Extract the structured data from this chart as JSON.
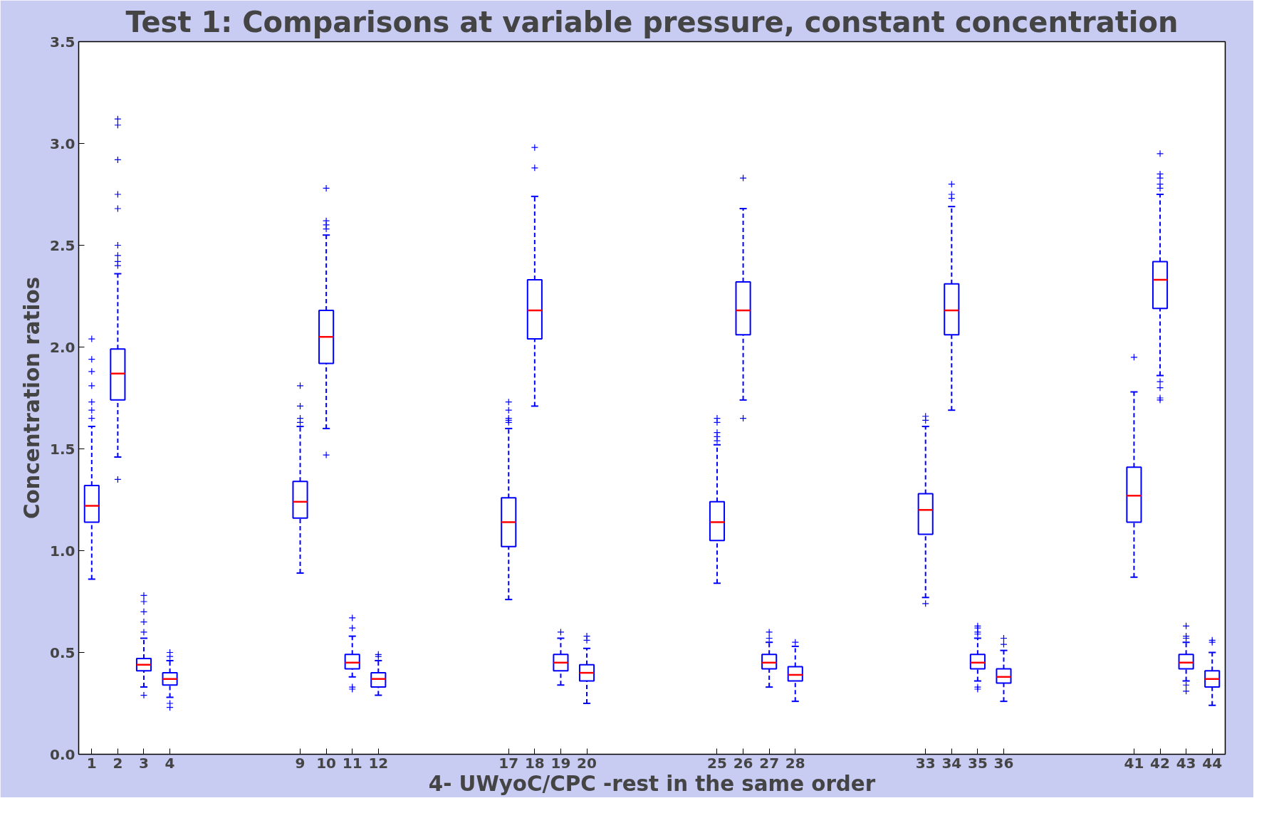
{
  "chart_data": {
    "type": "box",
    "title": "Test 1: Comparisons at variable pressure, constant concentration",
    "xlabel": "4- UWyoC/CPC -rest in the same order",
    "ylabel": "Concentration ratios",
    "x": [
      1,
      2,
      3,
      4,
      9,
      10,
      11,
      12,
      17,
      18,
      19,
      20,
      25,
      26,
      27,
      28,
      33,
      34,
      35,
      36,
      41,
      42,
      43,
      44
    ],
    "xlim": [
      0.5,
      44.5
    ],
    "xticks": [
      1,
      2,
      3,
      4,
      9,
      10,
      11,
      12,
      17,
      18,
      19,
      20,
      25,
      26,
      27,
      28,
      33,
      34,
      35,
      36,
      41,
      42,
      43,
      44
    ],
    "ylim": [
      0,
      3.5
    ],
    "yticks": [
      {
        "value": 0,
        "label": "0.0"
      },
      {
        "value": 0.5,
        "label": "0.5"
      },
      {
        "value": 1,
        "label": "1.0"
      },
      {
        "value": 1.5,
        "label": "1.5"
      },
      {
        "value": 2,
        "label": "2.0"
      },
      {
        "value": 2.5,
        "label": "2.5"
      },
      {
        "value": 3,
        "label": "3.0"
      },
      {
        "value": 3.5,
        "label": "3.5"
      }
    ],
    "color": "#0000ff",
    "marker": "cross",
    "grid": false,
    "boxes": [
      {
        "low": 0.86,
        "q1": 1.14,
        "median": 1.22,
        "q3": 1.32,
        "high": 1.61,
        "outliers": [
          1.65,
          1.69,
          1.73,
          1.81,
          1.88,
          1.94,
          2.04
        ]
      },
      {
        "low": 1.46,
        "q1": 1.74,
        "median": 1.87,
        "q3": 1.99,
        "high": 2.36,
        "outliers": [
          1.35,
          2.4,
          2.42,
          2.45,
          2.5,
          2.68,
          2.75,
          2.92,
          3.09,
          3.12
        ]
      },
      {
        "low": 0.33,
        "q1": 0.41,
        "median": 0.44,
        "q3": 0.47,
        "high": 0.57,
        "outliers": [
          0.29,
          0.6,
          0.65,
          0.7,
          0.75,
          0.78
        ]
      },
      {
        "low": 0.28,
        "q1": 0.34,
        "median": 0.37,
        "q3": 0.4,
        "high": 0.46,
        "outliers": [
          0.23,
          0.25,
          0.48,
          0.5
        ]
      },
      {
        "low": 0.89,
        "q1": 1.16,
        "median": 1.24,
        "q3": 1.34,
        "high": 1.61,
        "outliers": [
          1.63,
          1.65,
          1.71,
          1.81
        ]
      },
      {
        "low": 1.6,
        "q1": 1.92,
        "median": 2.05,
        "q3": 2.18,
        "high": 2.55,
        "outliers": [
          1.47,
          2.58,
          2.6,
          2.62,
          2.78
        ]
      },
      {
        "low": 0.38,
        "q1": 0.42,
        "median": 0.45,
        "q3": 0.49,
        "high": 0.58,
        "outliers": [
          0.32,
          0.33,
          0.62,
          0.67
        ]
      },
      {
        "low": 0.29,
        "q1": 0.33,
        "median": 0.37,
        "q3": 0.4,
        "high": 0.46,
        "outliers": [
          0.48,
          0.49
        ]
      },
      {
        "low": 0.76,
        "q1": 1.02,
        "median": 1.14,
        "q3": 1.26,
        "high": 1.6,
        "outliers": [
          1.63,
          1.64,
          1.65,
          1.69,
          1.73
        ]
      },
      {
        "low": 1.71,
        "q1": 2.04,
        "median": 2.18,
        "q3": 2.33,
        "high": 2.74,
        "outliers": [
          2.88,
          2.98
        ]
      },
      {
        "low": 0.34,
        "q1": 0.41,
        "median": 0.45,
        "q3": 0.49,
        "high": 0.57,
        "outliers": [
          0.6
        ]
      },
      {
        "low": 0.25,
        "q1": 0.36,
        "median": 0.4,
        "q3": 0.44,
        "high": 0.52,
        "outliers": [
          0.56,
          0.58
        ]
      },
      {
        "low": 0.84,
        "q1": 1.05,
        "median": 1.14,
        "q3": 1.24,
        "high": 1.52,
        "outliers": [
          1.54,
          1.56,
          1.58,
          1.63,
          1.65
        ]
      },
      {
        "low": 1.74,
        "q1": 2.06,
        "median": 2.18,
        "q3": 2.32,
        "high": 2.68,
        "outliers": [
          1.65,
          2.83
        ]
      },
      {
        "low": 0.33,
        "q1": 0.42,
        "median": 0.45,
        "q3": 0.49,
        "high": 0.55,
        "outliers": [
          0.57,
          0.6
        ]
      },
      {
        "low": 0.26,
        "q1": 0.36,
        "median": 0.39,
        "q3": 0.43,
        "high": 0.53,
        "outliers": [
          0.55
        ]
      },
      {
        "low": 0.77,
        "q1": 1.08,
        "median": 1.2,
        "q3": 1.28,
        "high": 1.61,
        "outliers": [
          0.74,
          1.64,
          1.66
        ]
      },
      {
        "low": 1.69,
        "q1": 2.06,
        "median": 2.18,
        "q3": 2.31,
        "high": 2.69,
        "outliers": [
          2.73,
          2.75,
          2.8
        ]
      },
      {
        "low": 0.36,
        "q1": 0.42,
        "median": 0.45,
        "q3": 0.49,
        "high": 0.57,
        "outliers": [
          0.32,
          0.33,
          0.59,
          0.6,
          0.62,
          0.63
        ]
      },
      {
        "low": 0.26,
        "q1": 0.35,
        "median": 0.38,
        "q3": 0.42,
        "high": 0.51,
        "outliers": [
          0.54,
          0.57
        ]
      },
      {
        "low": 0.87,
        "q1": 1.14,
        "median": 1.27,
        "q3": 1.41,
        "high": 1.78,
        "outliers": [
          1.95
        ]
      },
      {
        "low": 1.86,
        "q1": 2.19,
        "median": 2.33,
        "q3": 2.42,
        "high": 2.75,
        "outliers": [
          1.74,
          1.75,
          1.8,
          1.83,
          2.78,
          2.8,
          2.83,
          2.85,
          2.95
        ]
      },
      {
        "low": 0.36,
        "q1": 0.42,
        "median": 0.45,
        "q3": 0.49,
        "high": 0.55,
        "outliers": [
          0.31,
          0.34,
          0.57,
          0.58,
          0.63
        ]
      },
      {
        "low": 0.24,
        "q1": 0.33,
        "median": 0.37,
        "q3": 0.41,
        "high": 0.5,
        "outliers": [
          0.55,
          0.56
        ]
      }
    ]
  }
}
